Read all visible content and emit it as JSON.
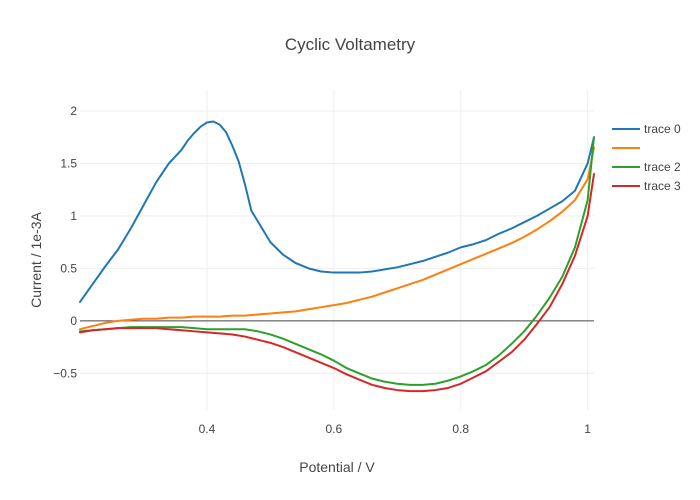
{
  "chart_data": {
    "type": "line",
    "title": "Cyclic Voltametry",
    "xlabel": "Potential / V",
    "ylabel": "Current / 1e-3A",
    "xlim": [
      0.2,
      1.01
    ],
    "ylim": [
      -0.85,
      2.2
    ],
    "xticks": [
      0.4,
      0.6,
      0.8,
      1
    ],
    "xtick_labels": [
      "0.4",
      "0.6",
      "0.8",
      "1"
    ],
    "yticks": [
      -0.5,
      0,
      0.5,
      1,
      1.5,
      2
    ],
    "ytick_labels": [
      "−0.5",
      "0",
      "0.5",
      "1",
      "1.5",
      "2"
    ],
    "grid": true,
    "legend_position": "right",
    "colors": [
      "#1f77b4",
      "#ff7f0e",
      "#2ca02c",
      "#d62728"
    ],
    "series": [
      {
        "name": "trace 0",
        "x": [
          0.2,
          0.22,
          0.24,
          0.26,
          0.28,
          0.3,
          0.32,
          0.34,
          0.36,
          0.37,
          0.38,
          0.39,
          0.4,
          0.41,
          0.42,
          0.43,
          0.44,
          0.45,
          0.46,
          0.47,
          0.48,
          0.5,
          0.52,
          0.54,
          0.56,
          0.58,
          0.6,
          0.62,
          0.64,
          0.66,
          0.68,
          0.7,
          0.72,
          0.74,
          0.76,
          0.78,
          0.8,
          0.82,
          0.84,
          0.86,
          0.88,
          0.9,
          0.92,
          0.94,
          0.96,
          0.98,
          1.0,
          1.01
        ],
        "y": [
          0.18,
          0.35,
          0.52,
          0.68,
          0.88,
          1.1,
          1.32,
          1.5,
          1.63,
          1.72,
          1.79,
          1.85,
          1.89,
          1.9,
          1.87,
          1.8,
          1.67,
          1.52,
          1.3,
          1.05,
          0.95,
          0.75,
          0.63,
          0.55,
          0.5,
          0.47,
          0.46,
          0.46,
          0.46,
          0.47,
          0.49,
          0.51,
          0.54,
          0.57,
          0.61,
          0.65,
          0.7,
          0.73,
          0.77,
          0.83,
          0.88,
          0.94,
          1.0,
          1.07,
          1.14,
          1.24,
          1.5,
          1.75
        ]
      },
      {
        "name": "",
        "x": [
          0.2,
          0.22,
          0.24,
          0.26,
          0.28,
          0.3,
          0.32,
          0.34,
          0.36,
          0.38,
          0.4,
          0.42,
          0.44,
          0.46,
          0.48,
          0.5,
          0.52,
          0.54,
          0.56,
          0.58,
          0.6,
          0.62,
          0.64,
          0.66,
          0.68,
          0.7,
          0.72,
          0.74,
          0.76,
          0.78,
          0.8,
          0.82,
          0.84,
          0.86,
          0.88,
          0.9,
          0.92,
          0.94,
          0.96,
          0.98,
          1.0,
          1.01
        ],
        "y": [
          -0.08,
          -0.05,
          -0.02,
          0.0,
          0.01,
          0.02,
          0.02,
          0.03,
          0.03,
          0.04,
          0.04,
          0.04,
          0.05,
          0.05,
          0.06,
          0.07,
          0.08,
          0.09,
          0.11,
          0.13,
          0.15,
          0.17,
          0.2,
          0.23,
          0.27,
          0.31,
          0.35,
          0.39,
          0.44,
          0.49,
          0.54,
          0.59,
          0.64,
          0.69,
          0.74,
          0.8,
          0.87,
          0.95,
          1.04,
          1.15,
          1.35,
          1.65
        ]
      },
      {
        "name": "trace 2",
        "x": [
          0.2,
          0.22,
          0.24,
          0.26,
          0.28,
          0.3,
          0.32,
          0.34,
          0.36,
          0.38,
          0.4,
          0.42,
          0.44,
          0.46,
          0.48,
          0.5,
          0.52,
          0.54,
          0.56,
          0.58,
          0.6,
          0.62,
          0.64,
          0.66,
          0.68,
          0.7,
          0.72,
          0.74,
          0.76,
          0.78,
          0.8,
          0.82,
          0.84,
          0.86,
          0.88,
          0.9,
          0.92,
          0.94,
          0.96,
          0.98,
          1.0,
          1.01
        ],
        "y": [
          -0.1,
          -0.09,
          -0.08,
          -0.07,
          -0.06,
          -0.06,
          -0.06,
          -0.06,
          -0.06,
          -0.07,
          -0.08,
          -0.08,
          -0.08,
          -0.08,
          -0.1,
          -0.13,
          -0.17,
          -0.22,
          -0.27,
          -0.32,
          -0.38,
          -0.45,
          -0.5,
          -0.55,
          -0.58,
          -0.6,
          -0.61,
          -0.61,
          -0.6,
          -0.57,
          -0.53,
          -0.48,
          -0.42,
          -0.33,
          -0.22,
          -0.1,
          0.05,
          0.22,
          0.42,
          0.7,
          1.15,
          1.75
        ]
      },
      {
        "name": "trace 3",
        "x": [
          0.2,
          0.22,
          0.24,
          0.26,
          0.28,
          0.3,
          0.32,
          0.34,
          0.36,
          0.38,
          0.4,
          0.42,
          0.44,
          0.46,
          0.48,
          0.5,
          0.52,
          0.54,
          0.56,
          0.58,
          0.6,
          0.62,
          0.64,
          0.66,
          0.68,
          0.7,
          0.72,
          0.74,
          0.76,
          0.78,
          0.8,
          0.82,
          0.84,
          0.86,
          0.88,
          0.9,
          0.92,
          0.94,
          0.96,
          0.98,
          1.0,
          1.01
        ],
        "y": [
          -0.11,
          -0.09,
          -0.08,
          -0.07,
          -0.07,
          -0.07,
          -0.07,
          -0.08,
          -0.09,
          -0.1,
          -0.11,
          -0.12,
          -0.13,
          -0.15,
          -0.18,
          -0.21,
          -0.25,
          -0.3,
          -0.35,
          -0.4,
          -0.45,
          -0.51,
          -0.56,
          -0.61,
          -0.64,
          -0.66,
          -0.67,
          -0.67,
          -0.66,
          -0.64,
          -0.6,
          -0.54,
          -0.48,
          -0.39,
          -0.3,
          -0.18,
          -0.03,
          0.13,
          0.35,
          0.62,
          1.0,
          1.4
        ]
      }
    ]
  }
}
